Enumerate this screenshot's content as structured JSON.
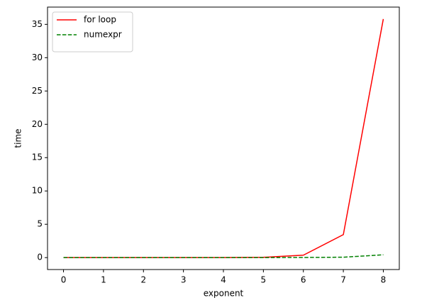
{
  "chart_data": {
    "type": "line",
    "xlabel": "exponent",
    "ylabel": "time",
    "x": [
      0,
      1,
      2,
      3,
      4,
      5,
      6,
      7,
      8
    ],
    "series": [
      {
        "name": "for loop",
        "color": "#ff0000",
        "linestyle": "solid",
        "values": [
          0.0,
          0.0,
          0.0,
          0.0,
          0.01,
          0.04,
          0.36,
          3.45,
          35.8
        ]
      },
      {
        "name": "numexpr",
        "color": "#008000",
        "linestyle": "dashed",
        "values": [
          0.0,
          0.0,
          0.0,
          0.0,
          0.0,
          0.005,
          0.02,
          0.06,
          0.42
        ]
      }
    ],
    "xlim": [
      -0.4,
      8.4
    ],
    "ylim": [
      -1.79,
      37.59
    ],
    "xticks": [
      0,
      1,
      2,
      3,
      4,
      5,
      6,
      7,
      8
    ],
    "yticks": [
      0,
      5,
      10,
      15,
      20,
      25,
      30,
      35
    ],
    "grid": false,
    "legend": "upper left"
  }
}
